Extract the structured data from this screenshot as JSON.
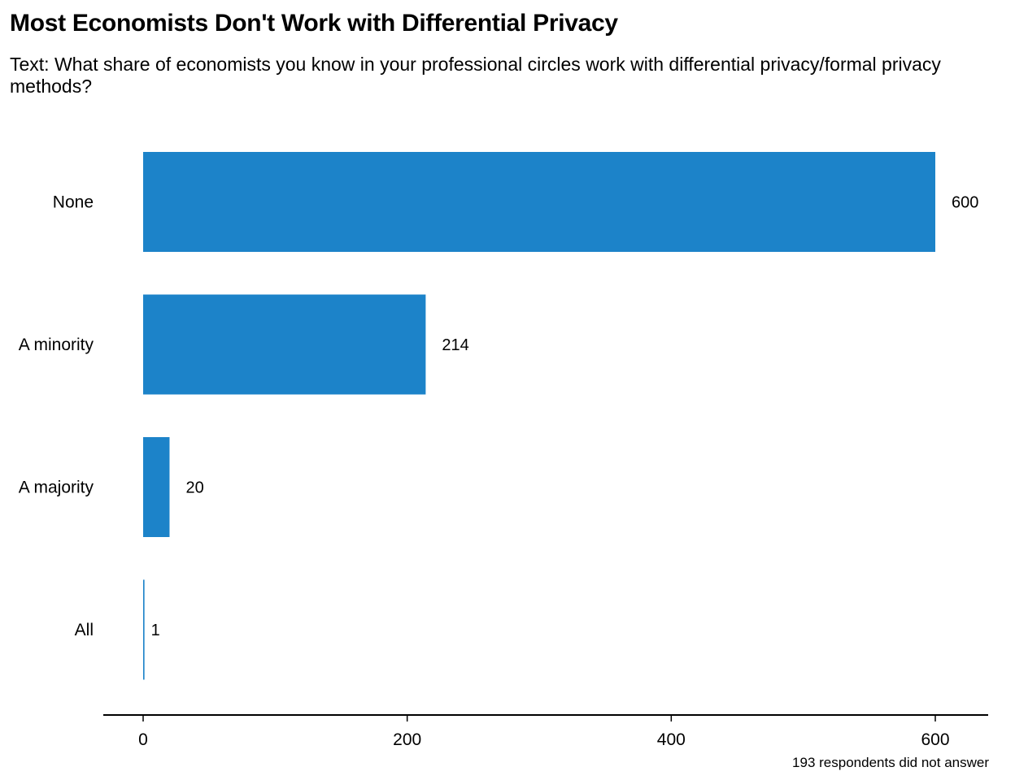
{
  "chart_data": {
    "type": "bar",
    "orientation": "horizontal",
    "title": "Most Economists Don't Work with Differential Privacy",
    "subtitle": "Text: What share of economists you know in your professional circles work with differential privacy/formal privacy methods?",
    "caption": "193 respondents did not answer",
    "categories": [
      "None",
      "A minority",
      "A majority",
      "All"
    ],
    "values": [
      600,
      214,
      20,
      1
    ],
    "value_labels": [
      "600",
      "214",
      "20",
      "1"
    ],
    "xlim": [
      0,
      600
    ],
    "xticks": [
      0,
      200,
      400,
      600
    ],
    "xtick_labels": [
      "0",
      "200",
      "400",
      "600"
    ],
    "xlabel": "",
    "ylabel": "",
    "bar_color": "#1c83c9",
    "grid": false,
    "legend": "none"
  }
}
